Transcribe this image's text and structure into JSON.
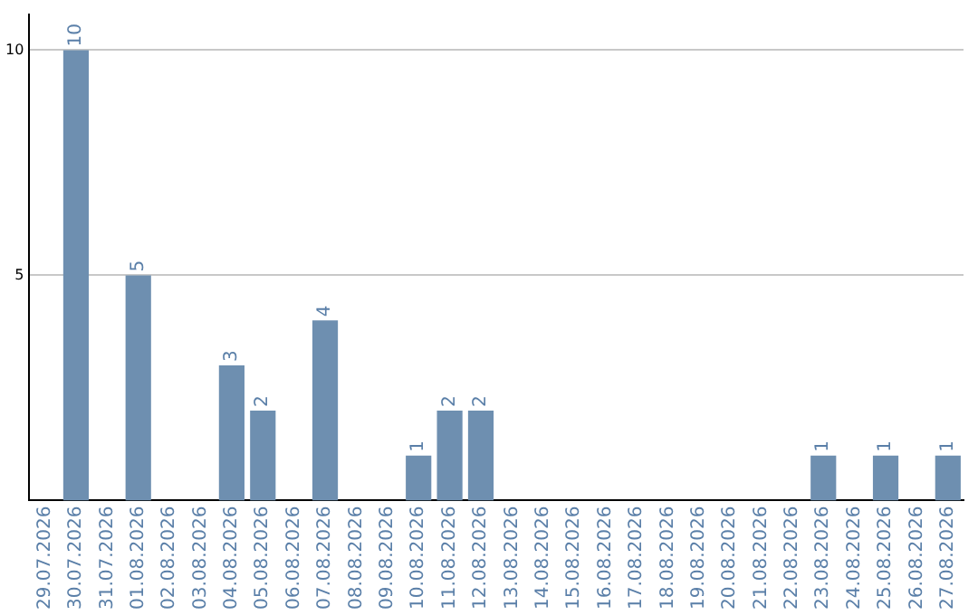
{
  "chart_data": {
    "type": "bar",
    "categories": [
      "29.07.2026",
      "30.07.2026",
      "31.07.2026",
      "01.08.2026",
      "02.08.2026",
      "03.08.2026",
      "04.08.2026",
      "05.08.2026",
      "06.08.2026",
      "07.08.2026",
      "08.08.2026",
      "09.08.2026",
      "10.08.2026",
      "11.08.2026",
      "12.08.2026",
      "13.08.2026",
      "14.08.2026",
      "15.08.2026",
      "16.08.2026",
      "17.08.2026",
      "18.08.2026",
      "19.08.2026",
      "20.08.2026",
      "21.08.2026",
      "22.08.2026",
      "23.08.2026",
      "24.08.2026",
      "25.08.2026",
      "26.08.2026",
      "27.08.2026"
    ],
    "values": [
      0,
      10,
      0,
      5,
      0,
      0,
      3,
      2,
      0,
      4,
      0,
      0,
      1,
      2,
      2,
      0,
      0,
      0,
      0,
      0,
      0,
      0,
      0,
      0,
      0,
      1,
      0,
      1,
      0,
      1
    ],
    "value_labels": [
      null,
      "10",
      null,
      "5",
      null,
      null,
      "3",
      "2",
      null,
      "4",
      null,
      null,
      "1",
      "2",
      "2",
      null,
      null,
      null,
      null,
      null,
      null,
      null,
      null,
      null,
      null,
      "1",
      null,
      "1",
      null,
      "1"
    ],
    "color": "#6e8fb0",
    "ylim": [
      0,
      10.8
    ],
    "yticks": [
      5,
      10
    ],
    "grid": "y",
    "legend": false
  }
}
